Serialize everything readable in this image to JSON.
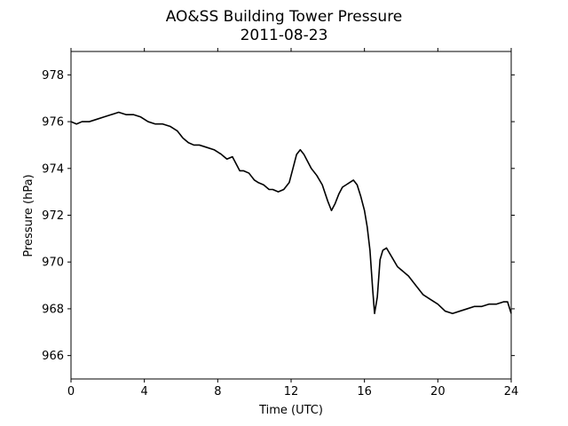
{
  "chart_data": {
    "type": "line",
    "title": "AO&SS Building Tower Pressure",
    "subtitle": "2011-08-23",
    "xlabel": "Time (UTC)",
    "ylabel": "Pressure (hPa)",
    "xlim": [
      0,
      24
    ],
    "ylim": [
      965,
      979
    ],
    "xticks": [
      0,
      4,
      8,
      12,
      16,
      20,
      24
    ],
    "yticks": [
      966,
      968,
      970,
      972,
      974,
      976,
      978
    ],
    "grid": false,
    "series_color": "#000000",
    "series": [
      {
        "x": [
          0,
          0.3,
          0.6,
          1.0,
          1.4,
          1.8,
          2.2,
          2.6,
          3.0,
          3.4,
          3.8,
          4.2,
          4.6,
          5.0,
          5.4,
          5.8,
          6.1,
          6.4,
          6.7,
          7.0,
          7.4,
          7.8,
          8.2,
          8.5,
          8.8,
          9.0,
          9.2,
          9.4,
          9.7,
          10.0,
          10.2,
          10.5,
          10.8,
          11.0,
          11.3,
          11.6,
          11.9,
          12.1,
          12.3,
          12.5,
          12.7,
          12.9,
          13.1,
          13.4,
          13.7,
          14.0,
          14.2,
          14.4,
          14.6,
          14.8,
          15.0,
          15.2,
          15.4,
          15.6,
          15.8,
          16.0,
          16.15,
          16.3,
          16.45,
          16.55,
          16.7,
          16.85,
          17.0,
          17.2,
          17.5,
          17.8,
          18.1,
          18.4,
          18.8,
          19.2,
          19.6,
          20.0,
          20.4,
          20.8,
          21.2,
          21.6,
          22.0,
          22.4,
          22.8,
          23.2,
          23.6,
          23.8,
          24.0
        ],
        "y": [
          976.0,
          975.9,
          976.0,
          976.0,
          976.1,
          976.2,
          976.3,
          976.4,
          976.3,
          976.3,
          976.2,
          976.0,
          975.9,
          975.9,
          975.8,
          975.6,
          975.3,
          975.1,
          975.0,
          975.0,
          974.9,
          974.8,
          974.6,
          974.4,
          974.5,
          974.2,
          973.9,
          973.9,
          973.8,
          973.5,
          973.4,
          973.3,
          973.1,
          973.1,
          973.0,
          973.1,
          973.4,
          974.0,
          974.6,
          974.8,
          974.6,
          974.3,
          974.0,
          973.7,
          973.3,
          972.6,
          972.2,
          972.5,
          972.9,
          973.2,
          973.3,
          973.4,
          973.5,
          973.3,
          972.8,
          972.2,
          971.5,
          970.5,
          968.8,
          967.8,
          968.5,
          970.1,
          970.5,
          970.6,
          970.2,
          969.8,
          969.6,
          969.4,
          969.0,
          968.6,
          968.4,
          968.2,
          967.9,
          967.8,
          967.9,
          968.0,
          968.1,
          968.1,
          968.2,
          968.2,
          968.3,
          968.3,
          967.8
        ]
      }
    ]
  }
}
